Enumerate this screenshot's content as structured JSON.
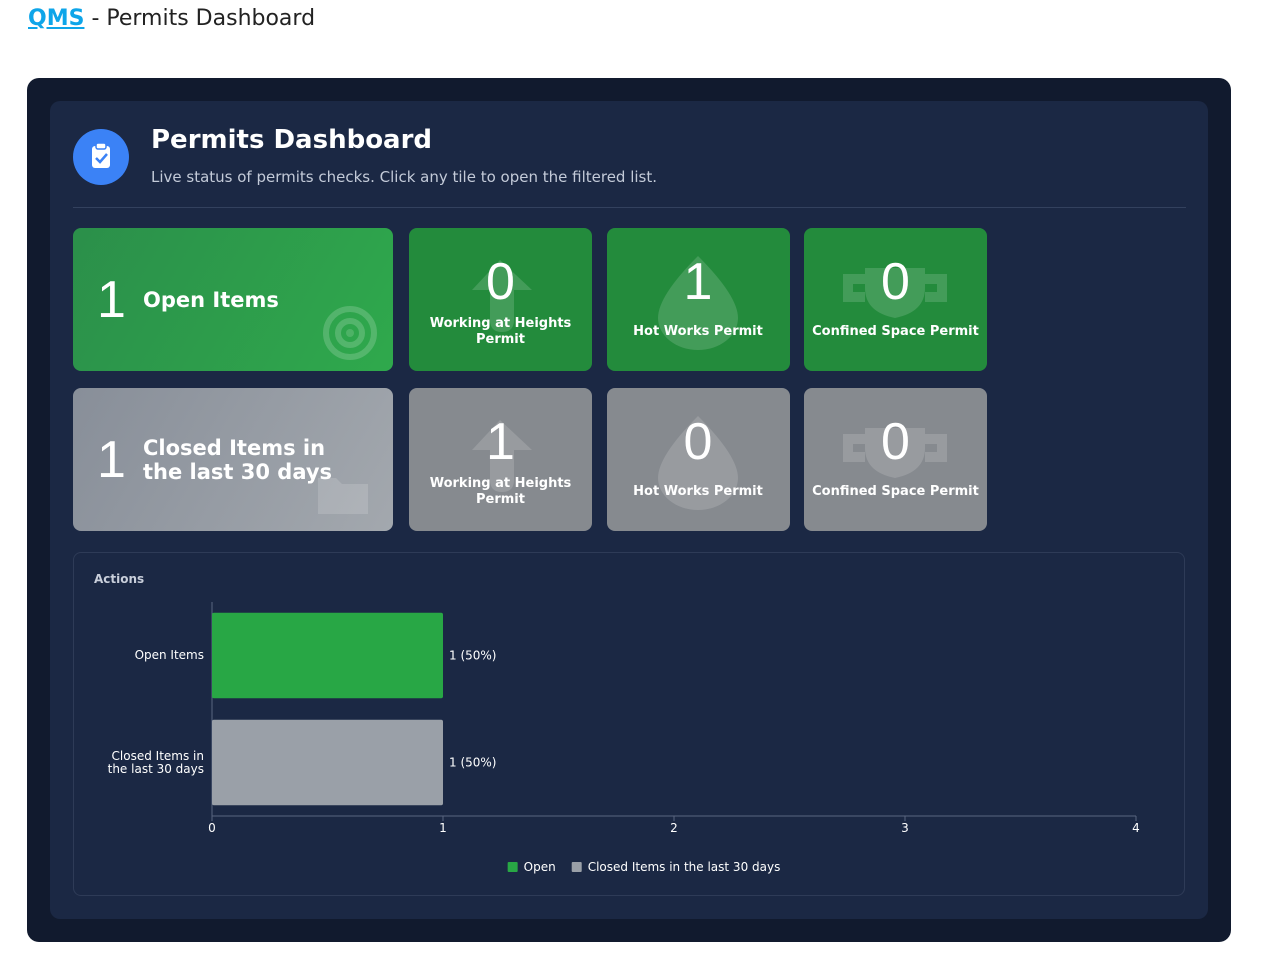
{
  "header": {
    "link": "QMS",
    "title": "- Permits Dashboard"
  },
  "panel": {
    "title": "Permits Dashboard",
    "subtitle": "Live status of permits checks. Click any tile to open the filtered list."
  },
  "tiles": [
    {
      "count": 1,
      "label": "Open Items",
      "color": "#2fa94c",
      "small_color": "#238b3c",
      "items": [
        {
          "count": 0,
          "label": "Working at Heights Permit"
        },
        {
          "count": 1,
          "label": "Hot Works Permit"
        },
        {
          "count": 0,
          "label": "Confined Space Permit"
        }
      ]
    },
    {
      "count": 1,
      "label": "Closed Items in the last 30 days",
      "color": "#a3a8ae",
      "small_color": "#868a8f",
      "items": [
        {
          "count": 1,
          "label": "Working at Heights Permit"
        },
        {
          "count": 0,
          "label": "Hot Works Permit"
        },
        {
          "count": 0,
          "label": "Confined Space Permit"
        }
      ]
    }
  ],
  "chart_data": {
    "type": "bar",
    "orientation": "horizontal",
    "title": "Actions",
    "categories": [
      "Open Items",
      "Closed Items in the last 30 days"
    ],
    "series": [
      {
        "name": "Open",
        "color": "#28a745",
        "values": [
          1,
          null
        ],
        "value_labels": [
          "1 (50%)",
          null
        ]
      },
      {
        "name": "Closed Items in the last 30 days",
        "color": "#9aa0a8",
        "values": [
          null,
          1
        ],
        "value_labels": [
          null,
          "1 (50%)"
        ]
      }
    ],
    "xlim": [
      0,
      4
    ],
    "xticks": [
      0,
      1,
      2,
      3,
      4
    ],
    "grid": false,
    "legend": "bottom"
  }
}
